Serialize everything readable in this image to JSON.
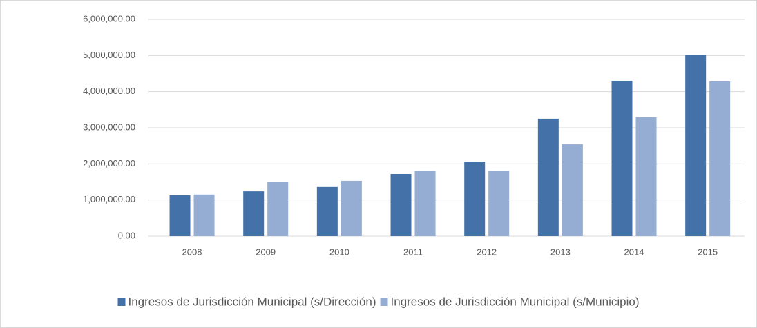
{
  "chart_data": {
    "type": "bar",
    "categories": [
      "2008",
      "2009",
      "2010",
      "2011",
      "2012",
      "2013",
      "2014",
      "2015"
    ],
    "series": [
      {
        "name": "Ingresos de Jurisdicción Municipal (s/Dirección)",
        "color": "#4472a8",
        "values": [
          1130000,
          1240000,
          1360000,
          1720000,
          2060000,
          3250000,
          4300000,
          5010000
        ]
      },
      {
        "name": "Ingresos de Jurisdicción Municipal (s/Municipio)",
        "color": "#95acd3",
        "values": [
          1150000,
          1490000,
          1530000,
          1800000,
          1800000,
          2540000,
          3290000,
          4280000
        ]
      }
    ],
    "ylim": [
      0,
      6000000
    ],
    "yticks": [
      {
        "value": 0,
        "label": "0.00"
      },
      {
        "value": 1000000,
        "label": "1,000,000.00"
      },
      {
        "value": 2000000,
        "label": "2,000,000.00"
      },
      {
        "value": 3000000,
        "label": "3,000,000.00"
      },
      {
        "value": 4000000,
        "label": "4,000,000.00"
      },
      {
        "value": 5000000,
        "label": "5,000,000.00"
      },
      {
        "value": 6000000,
        "label": "6,000,000.00"
      }
    ],
    "grid": true,
    "legend": "bottom"
  }
}
